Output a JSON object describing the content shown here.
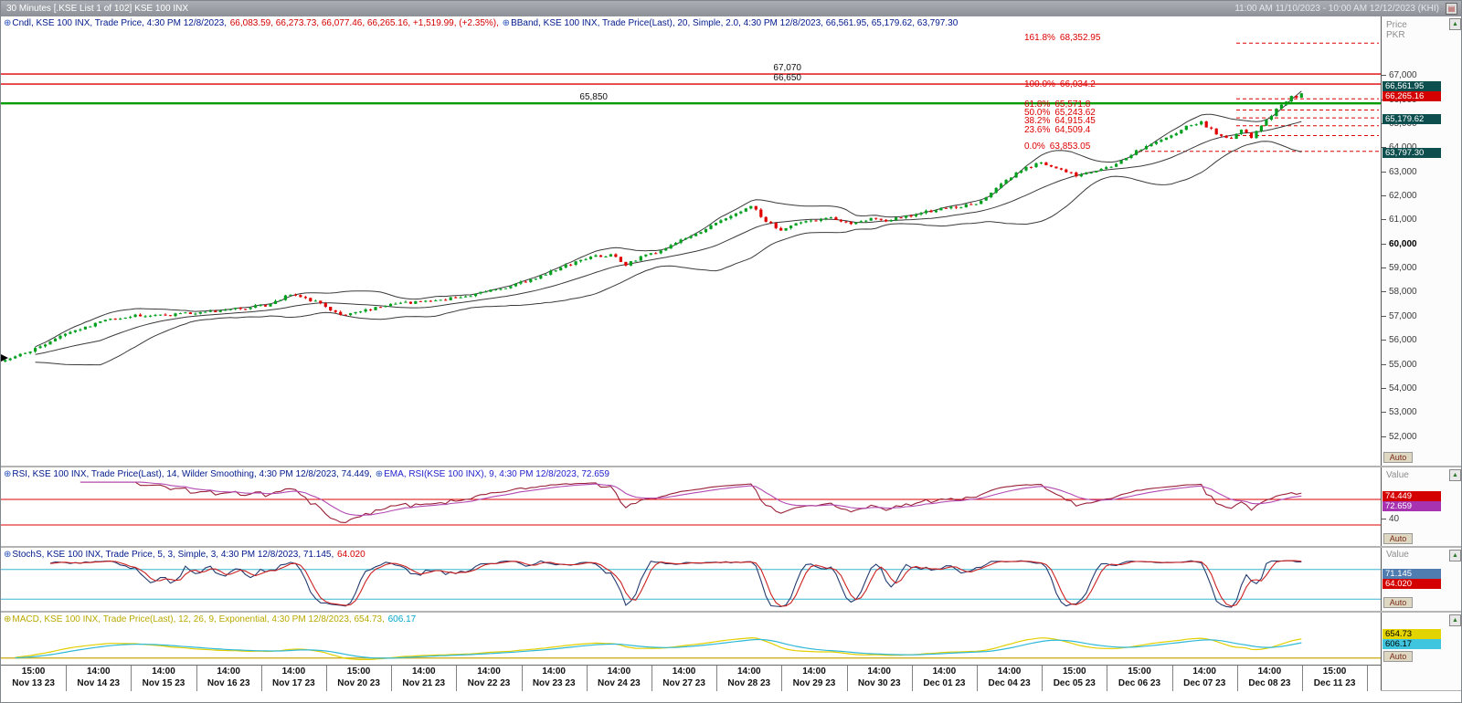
{
  "titlebar": {
    "left": "30 Minutes [.KSE List 1 of 102] KSE 100 INX",
    "right": "11:00 AM 11/10/2023 - 10:00 AM 12/12/2023 (KHI)",
    "menu_icon": "▤"
  },
  "axis": {
    "price_title_1": "Price",
    "price_title_2": "PKR",
    "value_title": "Value",
    "auto_label": "Auto"
  },
  "panes": {
    "main": {
      "legend": [
        {
          "text": "⊕",
          "color": "#2a52be"
        },
        {
          "text": "Cndl, KSE 100 INX, Trade Price, 4:30 PM 12/8/2023, ",
          "color": "#001a8c"
        },
        {
          "text": "66,083.59, 66,273.73, 66,077.46, 66,265.16, +1,519.99, (+2.35%), ",
          "color": "#d40000"
        },
        {
          "text": "⊕",
          "color": "#2a52be"
        },
        {
          "text": "BBand, KSE 100 INX, Trade Price(Last), 20, Simple, 2.0, 4:30 PM 12/8/2023, 66,561.95, 65,179.62, 63,797.30",
          "color": "#001a8c"
        }
      ]
    },
    "rsi": {
      "legend": [
        {
          "text": "⊕",
          "color": "#2a52be"
        },
        {
          "text": "RSI, KSE 100 INX, Trade Price(Last), 14, Wilder Smoothing, 4:30 PM 12/8/2023, 74.449, ",
          "color": "#001a8c"
        },
        {
          "text": "⊕",
          "color": "#2a52be"
        },
        {
          "text": "EMA, RSI(KSE 100 INX), 9, 4:30 PM 12/8/2023, 72.659",
          "color": "#2222cc"
        }
      ],
      "y_tick": "40"
    },
    "stoch": {
      "legend": [
        {
          "text": "⊕",
          "color": "#2a52be"
        },
        {
          "text": "StochS, KSE 100 INX, Trade Price, 5, 3, Simple, 3, 4:30 PM 12/8/2023, 71.145, ",
          "color": "#001a8c"
        },
        {
          "text": "64.020",
          "color": "#d40000"
        }
      ]
    },
    "macd": {
      "legend": [
        {
          "text": "⊕",
          "color": "#b9a900"
        },
        {
          "text": "MACD, KSE 100 INX, Trade Price(Last), 12, 26, 9, Exponential, 4:30 PM 12/8/2023, 654.73, ",
          "color": "#b9a900"
        },
        {
          "text": "606.17",
          "color": "#00a8c8"
        }
      ]
    }
  },
  "chart_data": {
    "type": "candlestick",
    "symbol": "KSE 100 INX",
    "interval": "30 Minutes",
    "time_range": "11:00 AM 11/10/2023 - 10:00 AM 12/12/2023 (KHI)",
    "last_candle": {
      "open": 66083.59,
      "high": 66273.73,
      "low": 66077.46,
      "close": 66265.16,
      "change": "+1,519.99",
      "change_pct": "+2.35%"
    },
    "bollinger": {
      "period": 20,
      "ma_type": "Simple",
      "stdev": 2.0,
      "upper": 66561.95,
      "middle": 65179.62,
      "lower": 63797.3
    },
    "y_axis": {
      "title": "Price PKR",
      "bold_tick": 60000,
      "ticks": [
        {
          "v": 67000,
          "label": "67,000"
        },
        {
          "v": 66000,
          "label": "66,000"
        },
        {
          "v": 65000,
          "label": "65,000"
        },
        {
          "v": 64000,
          "label": "64,000"
        },
        {
          "v": 63000,
          "label": "63,000"
        },
        {
          "v": 62000,
          "label": "62,000"
        },
        {
          "v": 61000,
          "label": "61,000"
        },
        {
          "v": 60000,
          "label": "60,000"
        },
        {
          "v": 59000,
          "label": "59,000"
        },
        {
          "v": 58000,
          "label": "58,000"
        },
        {
          "v": 57000,
          "label": "57,000"
        },
        {
          "v": 56000,
          "label": "56,000"
        },
        {
          "v": 55000,
          "label": "55,000"
        },
        {
          "v": 54000,
          "label": "54,000"
        },
        {
          "v": 53000,
          "label": "53,000"
        },
        {
          "v": 52000,
          "label": "52,000"
        }
      ]
    },
    "price_lines": [
      {
        "label": "67,070",
        "price": 67070,
        "color": "#dd0000",
        "width": 1.4
      },
      {
        "label": "66,650",
        "price": 66650,
        "color": "#dd0000",
        "width": 1.4
      },
      {
        "label": "65,850",
        "price": 65850,
        "color": "#009b00",
        "width": 2.4
      }
    ],
    "fibonacci": [
      {
        "pct": "161.8%",
        "label": "68,352.95",
        "price": 68352.95
      },
      {
        "pct": "100.0%",
        "label": "66,034.2",
        "price": 66034.2
      },
      {
        "pct": "61.8%",
        "label": "65,571.8",
        "price": 65571.8
      },
      {
        "pct": "50.0%",
        "label": "65,243.62",
        "price": 65243.62
      },
      {
        "pct": "38.2%",
        "label": "64,915.45",
        "price": 64915.45
      },
      {
        "pct": "23.6%",
        "label": "64,509.4",
        "price": 64509.4
      },
      {
        "pct": "0.0%",
        "label": "63,853.05",
        "price": 63853.05
      }
    ],
    "price_badges": [
      {
        "text": "66,561.95",
        "price": 66561.95,
        "bg": "#0d4f4f",
        "fg": "#ffffff"
      },
      {
        "text": "66,265.16",
        "price": 66265.16,
        "bg": "#d40000",
        "fg": "#ffffff"
      },
      {
        "text": "65,179.62",
        "price": 65179.62,
        "bg": "#0d4f4f",
        "fg": "#ffffff"
      },
      {
        "text": "63,797.30",
        "price": 63797.3,
        "bg": "#0d4f4f",
        "fg": "#ffffff"
      }
    ],
    "rsi": {
      "period": 14,
      "smoothing": "Wilder Smoothing",
      "value": 74.449,
      "ema_period": 9,
      "ema_value": 72.659,
      "levels": [
        70,
        30
      ],
      "badges": [
        {
          "text": "74.449",
          "value": 74.449,
          "bg": "#d40000",
          "fg": "#ffffff"
        },
        {
          "text": "72.659",
          "value": 72.659,
          "bg": "#a833b0",
          "fg": "#ffffff"
        }
      ]
    },
    "stoch": {
      "k_period": 5,
      "k_smoothing": 3,
      "ma_type": "Simple",
      "d_period": 3,
      "k": 71.145,
      "d": 64.02,
      "levels": [
        80,
        20
      ],
      "badges": [
        {
          "text": "71.145",
          "value": 71.145,
          "bg": "#4f7db0",
          "fg": "#ffffff"
        },
        {
          "text": "64.020",
          "value": 64.02,
          "bg": "#d40000",
          "fg": "#ffffff"
        }
      ]
    },
    "macd": {
      "fast": 12,
      "slow": 26,
      "signal": 9,
      "ma_type": "Exponential",
      "macd_value": 654.73,
      "signal_value": 606.17,
      "badges": [
        {
          "text": "654.73",
          "value": 654.73,
          "bg": "#e3d400",
          "fg": "#000000"
        },
        {
          "text": "606.17",
          "value": 606.17,
          "bg": "#3fc6de",
          "fg": "#000000"
        }
      ]
    },
    "x_axis": {
      "times": [
        "15:00",
        "14:00",
        "14:00",
        "14:00",
        "14:00",
        "15:00",
        "14:00",
        "14:00",
        "14:00",
        "14:00",
        "14:00",
        "14:00",
        "14:00",
        "14:00",
        "14:00",
        "14:00",
        "15:00",
        "15:00",
        "14:00",
        "14:00",
        "15:00"
      ],
      "dates": [
        "Nov 13 23",
        "Nov 14 23",
        "Nov 15 23",
        "Nov 16 23",
        "Nov 17 23",
        "Nov 20 23",
        "Nov 21 23",
        "Nov 22 23",
        "Nov 23 23",
        "Nov 24 23",
        "Nov 27 23",
        "Nov 28 23",
        "Nov 29 23",
        "Nov 30 23",
        "Dec 01 23",
        "Dec 04 23",
        "Dec 05 23",
        "Dec 06 23",
        "Dec 07 23",
        "Dec 08 23",
        "Dec 11 23"
      ]
    },
    "candles_per_session": 13,
    "price_path_anchors": [
      [
        0,
        55150
      ],
      [
        6,
        55650
      ],
      [
        13,
        56350
      ],
      [
        20,
        56800
      ],
      [
        26,
        57050
      ],
      [
        33,
        57050
      ],
      [
        39,
        57150
      ],
      [
        46,
        57300
      ],
      [
        52,
        57450
      ],
      [
        57,
        57900
      ],
      [
        62,
        57600
      ],
      [
        67,
        57050
      ],
      [
        73,
        57300
      ],
      [
        78,
        57550
      ],
      [
        85,
        57600
      ],
      [
        91,
        57800
      ],
      [
        98,
        58100
      ],
      [
        104,
        58450
      ],
      [
        110,
        58950
      ],
      [
        117,
        59450
      ],
      [
        121,
        59550
      ],
      [
        124,
        59150
      ],
      [
        127,
        59450
      ],
      [
        130,
        59650
      ],
      [
        136,
        60250
      ],
      [
        143,
        60950
      ],
      [
        147,
        61350
      ],
      [
        149,
        61600
      ],
      [
        152,
        60950
      ],
      [
        155,
        60600
      ],
      [
        160,
        60950
      ],
      [
        165,
        61100
      ],
      [
        169,
        60800
      ],
      [
        173,
        61050
      ],
      [
        176,
        60950
      ],
      [
        182,
        61250
      ],
      [
        188,
        61500
      ],
      [
        194,
        61650
      ],
      [
        198,
        62300
      ],
      [
        203,
        63100
      ],
      [
        207,
        63400
      ],
      [
        210,
        63200
      ],
      [
        214,
        62850
      ],
      [
        218,
        63050
      ],
      [
        220,
        63150
      ],
      [
        224,
        63600
      ],
      [
        228,
        64100
      ],
      [
        233,
        64500
      ],
      [
        236,
        64900
      ],
      [
        239,
        65050
      ],
      [
        242,
        64600
      ],
      [
        245,
        64400
      ],
      [
        247,
        64745
      ],
      [
        249,
        64450
      ],
      [
        252,
        65150
      ],
      [
        255,
        65800
      ],
      [
        257,
        66100
      ],
      [
        259,
        66265
      ]
    ],
    "style": {
      "up_color": "#00a01e",
      "down_color": "#e10000",
      "bollinger_color": "#3a3a3a",
      "rsi_color": "#992038",
      "rsi_ema_color": "#b24ab2",
      "rsi_level_color": "#dd0000",
      "stoch_k_color": "#243a6e",
      "stoch_d_color": "#cc2020",
      "stoch_level_color": "#35b7cf",
      "macd_color": "#e3cf00",
      "macd_signal_color": "#2fb9d8",
      "macd_zero_color": "#c9a80a",
      "fib_color": "#dd0000"
    }
  }
}
